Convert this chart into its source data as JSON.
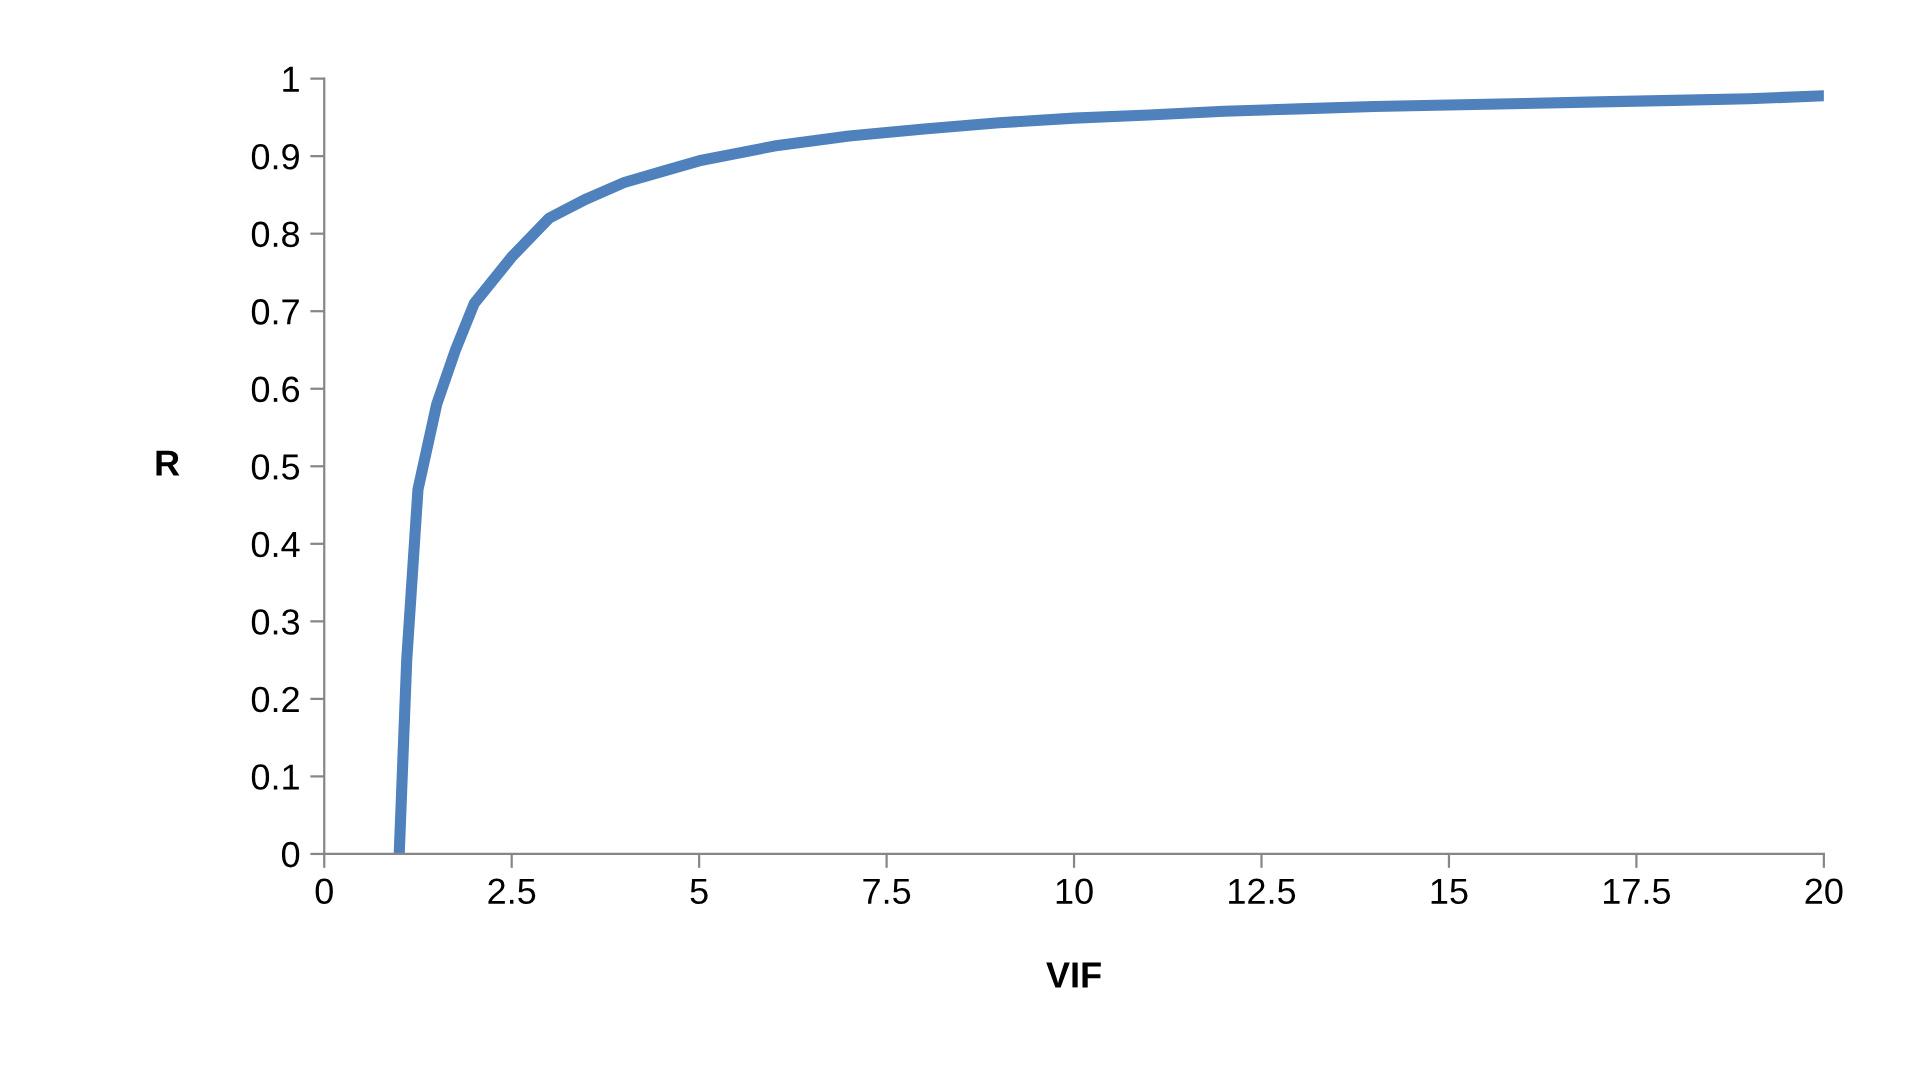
{
  "chart_data": {
    "type": "line",
    "xlabel": "VIF",
    "ylabel": "R",
    "x": [
      1,
      1.1,
      1.25,
      1.5,
      1.75,
      2,
      2.5,
      3,
      3.5,
      4,
      4.5,
      5,
      6,
      7,
      8,
      9,
      10,
      11,
      12,
      13,
      14,
      15,
      16,
      17,
      18,
      19,
      20
    ],
    "series": [
      {
        "color": "#4f81bd",
        "values": [
          0,
          0.25,
          0.47,
          0.58,
          0.65,
          0.71,
          0.77,
          0.82,
          0.845,
          0.866,
          0.88,
          0.894,
          0.913,
          0.926,
          0.935,
          0.943,
          0.949,
          0.953,
          0.958,
          0.961,
          0.964,
          0.966,
          0.968,
          0.97,
          0.972,
          0.974,
          0.978
        ]
      }
    ],
    "xlim": [
      0,
      20
    ],
    "ylim": [
      0,
      1
    ],
    "xticks": [
      0,
      2.5,
      5,
      7.5,
      10,
      12.5,
      15,
      17.5,
      20
    ],
    "yticks": [
      0,
      0.1,
      0.2,
      0.3,
      0.4,
      0.5,
      0.6,
      0.7,
      0.8,
      0.9,
      1
    ],
    "grid": false,
    "legend": false,
    "marker": "none",
    "line_style": "solid"
  }
}
